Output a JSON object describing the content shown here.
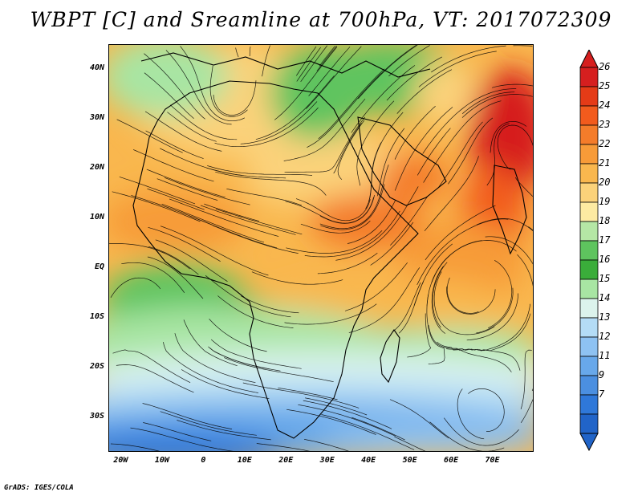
{
  "title": "WBPT [C] and Sreamline at 700hPa, VT: 2017072309",
  "credit": "GrADS: IGES/COLA",
  "map": {
    "variable": "Wet-bulb potential temperature",
    "units": "C",
    "level": "700hPa",
    "valid_time": "2017072309",
    "lon_range": [
      -23,
      80
    ],
    "lat_range": [
      -37,
      45
    ],
    "lat_ticks": [
      "40N",
      "30N",
      "20N",
      "10N",
      "EQ",
      "10S",
      "20S",
      "30S"
    ],
    "lat_values": [
      40,
      30,
      20,
      10,
      0,
      -10,
      -20,
      -30
    ],
    "lon_ticks": [
      "20W",
      "10W",
      "0",
      "10E",
      "20E",
      "30E",
      "40E",
      "50E",
      "60E",
      "70E"
    ],
    "lon_values": [
      -20,
      -10,
      0,
      10,
      20,
      30,
      40,
      50,
      60,
      70
    ]
  },
  "colorbar": {
    "labels": [
      "26",
      "25",
      "24",
      "23",
      "22",
      "21",
      "20",
      "19",
      "18",
      "17",
      "16",
      "15",
      "14",
      "13",
      "12",
      "11",
      "9",
      "7"
    ],
    "colors": [
      "#d61f1f",
      "#e53b17",
      "#f25b1d",
      "#f47c2a",
      "#f79b38",
      "#f9b74e",
      "#fbd27a",
      "#fdeaa2",
      "#b5e7a5",
      "#5ec45e",
      "#3aad3a",
      "#a8e5a3",
      "#dcf3ec",
      "#b4dcf6",
      "#8ec2f2",
      "#68a8ea",
      "#4b8fe0",
      "#2f78d9",
      "#2164c8"
    ]
  }
}
